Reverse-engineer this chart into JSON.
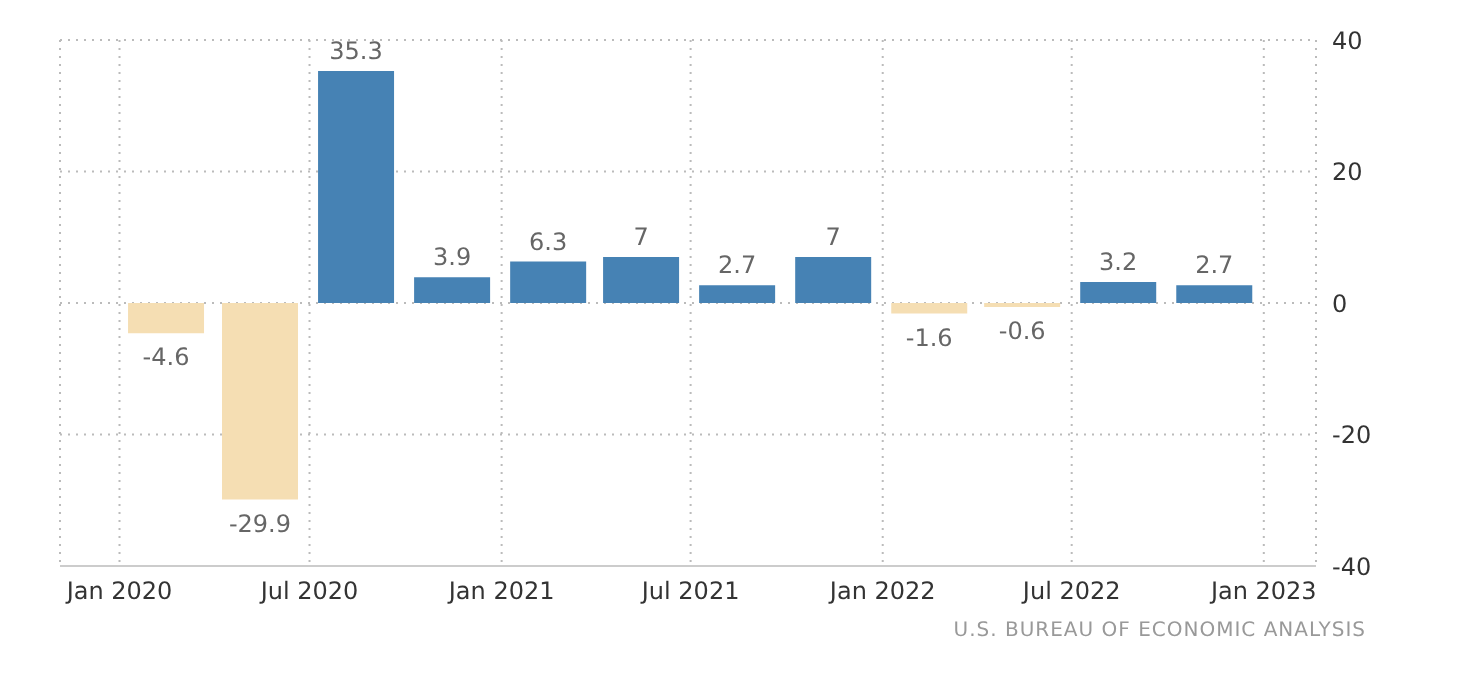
{
  "chart_data": {
    "type": "bar",
    "x": [
      "2020-02-15",
      "2020-05-15",
      "2020-08-15",
      "2020-11-15",
      "2021-02-15",
      "2021-05-15",
      "2021-08-15",
      "2021-11-15",
      "2022-02-15",
      "2022-05-15",
      "2022-08-15",
      "2022-11-15"
    ],
    "values": [
      -4.6,
      -29.9,
      35.3,
      3.9,
      6.3,
      7,
      2.7,
      7,
      -1.6,
      -0.6,
      3.2,
      2.7
    ],
    "colors": [
      "#f5deb3",
      "#f5deb3",
      "#4682b4",
      "#4682b4",
      "#4682b4",
      "#4682b4",
      "#4682b4",
      "#4682b4",
      "#f5deb3",
      "#f5deb3",
      "#4682b4",
      "#4682b4"
    ],
    "data_labels": true,
    "xlim": [
      "2019-11-05",
      "2023-02-20"
    ],
    "xticks": [
      {
        "value": "2020-01-01",
        "label": "Jan 2020"
      },
      {
        "value": "2020-07-01",
        "label": "Jul 2020"
      },
      {
        "value": "2021-01-01",
        "label": "Jan 2021"
      },
      {
        "value": "2021-07-01",
        "label": "Jul 2021"
      },
      {
        "value": "2022-01-01",
        "label": "Jan 2022"
      },
      {
        "value": "2022-07-01",
        "label": "Jul 2022"
      },
      {
        "value": "2023-01-01",
        "label": "Jan 2023"
      }
    ],
    "ylim": [
      -40,
      40
    ],
    "yticks": [
      -40,
      -20,
      0,
      20,
      40
    ],
    "grid": true,
    "annotations": [
      "U.S. BUREAU OF ECONOMIC ANALYSIS"
    ]
  }
}
